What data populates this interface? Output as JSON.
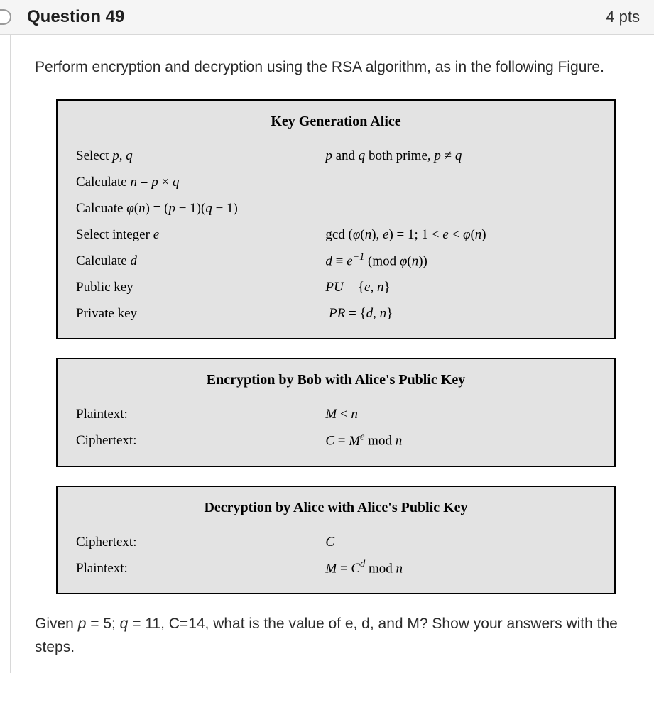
{
  "header": {
    "title": "Question 49",
    "points": "4 pts"
  },
  "prompt": "Perform encryption and decryption using the RSA algorithm, as in the following Figure.",
  "boxes": {
    "keygen": {
      "title": "Key Generation Alice",
      "rows": [
        {
          "left_html": "Select <span class='it'>p</span>, <span class='it'>q</span>",
          "right_html": "<span class='it'>p</span> and <span class='it'>q</span> both prime, <span class='it'>p</span> &ne; <span class='it'>q</span>"
        },
        {
          "left_html": "Calculate <span class='it'>n</span> = <span class='it'>p</span> &times; <span class='it'>q</span>",
          "right_html": ""
        },
        {
          "left_html": "Calcuate <span class='it'>&phi;</span>(<span class='it'>n</span>) = (<span class='it'>p</span> &minus; 1)(<span class='it'>q</span> &minus; 1)",
          "right_html": ""
        },
        {
          "left_html": "Select integer <span class='it'>e</span>",
          "right_html": "gcd (<span class='it'>&phi;</span>(<span class='it'>n</span>), <span class='it'>e</span>) = 1; 1 &lt; <span class='it'>e</span> &lt; <span class='it'>&phi;</span>(<span class='it'>n</span>)"
        },
        {
          "left_html": "Calculate <span class='it'>d</span>",
          "right_html": "<span class='it'>d</span> &equiv; <span class='it'>e</span><sup>&minus;1</sup> (mod <span class='it'>&phi;</span>(<span class='it'>n</span>))"
        },
        {
          "left_html": "Public key",
          "right_html": "<span class='it'>PU</span> = {<span class='it'>e</span>, <span class='it'>n</span>}"
        },
        {
          "left_html": "Private key",
          "right_html": "&nbsp;<span class='it'>PR</span> = {<span class='it'>d</span>, <span class='it'>n</span>}"
        }
      ]
    },
    "encrypt": {
      "title": "Encryption by Bob with Alice's Public Key",
      "rows": [
        {
          "left_html": "Plaintext:",
          "right_html": "<span class='it'>M</span> &lt; <span class='it'>n</span>"
        },
        {
          "left_html": "Ciphertext:",
          "right_html": "<span class='it'>C</span> = <span class='it'>M<sup>e</sup></span> mod <span class='it'>n</span>"
        }
      ]
    },
    "decrypt": {
      "title": "Decryption by Alice with Alice's Public Key",
      "rows": [
        {
          "left_html": "Ciphertext:",
          "right_html": "<span class='it'>C</span>"
        },
        {
          "left_html": "Plaintext:",
          "right_html": "<span class='it'>M</span> = <span class='it'>C<sup>d</sup></span> mod <span class='it'>n</span>"
        }
      ]
    }
  },
  "final_html": "Given <span class='it'>p</span> = 5; <span class='it'>q</span> = 11, C=14, what is the value of e, d, and M? Show your answers with the steps."
}
